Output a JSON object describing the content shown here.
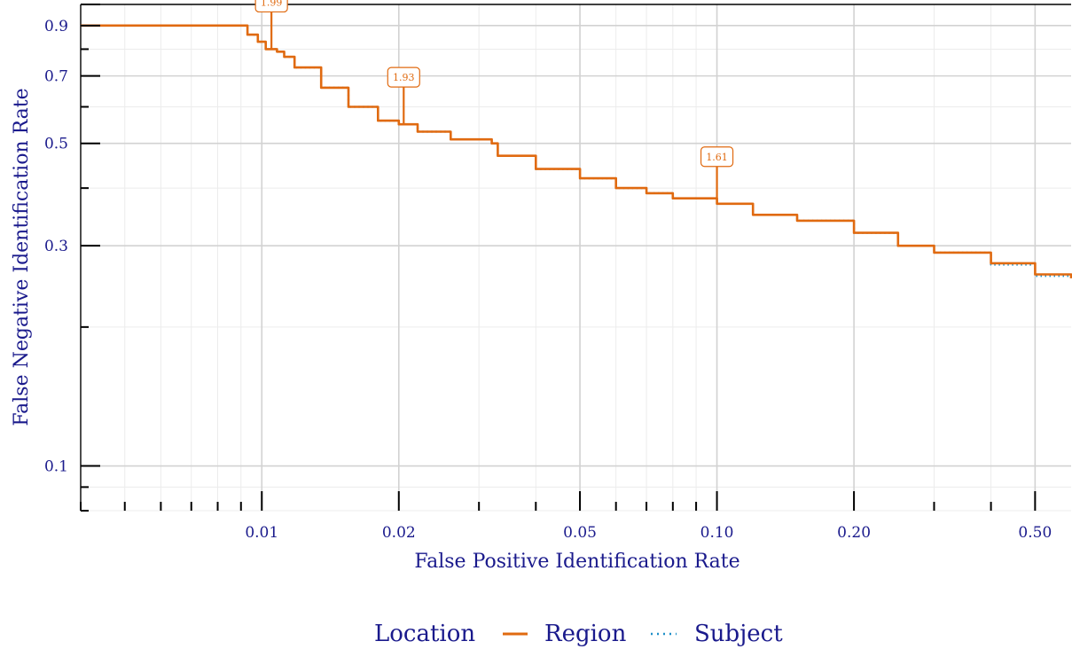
{
  "chart_data": {
    "type": "line",
    "title": "",
    "xlabel": "False Positive Identification Rate",
    "ylabel": "False Negative Identification Rate",
    "x_scale": "log",
    "y_scale": "log",
    "xlim": [
      0.004,
      0.6
    ],
    "ylim": [
      0.08,
      1.0
    ],
    "grid": true,
    "x_ticks": [
      {
        "value": 0.01,
        "label": "0.01"
      },
      {
        "value": 0.02,
        "label": "0.02"
      },
      {
        "value": 0.05,
        "label": "0.05"
      },
      {
        "value": 0.1,
        "label": "0.10"
      },
      {
        "value": 0.2,
        "label": "0.20"
      },
      {
        "value": 0.5,
        "label": "0.50"
      }
    ],
    "y_ticks": [
      {
        "value": 0.1,
        "label": "0.1"
      },
      {
        "value": 0.3,
        "label": "0.3"
      },
      {
        "value": 0.5,
        "label": "0.5"
      },
      {
        "value": 0.7,
        "label": "0.7"
      },
      {
        "value": 0.9,
        "label": "0.9"
      }
    ],
    "legend": {
      "title": "Location",
      "position": "bottom",
      "entries": [
        {
          "name": "Region",
          "style": "solid",
          "color": "#e06a10"
        },
        {
          "name": "Subject",
          "style": "dotted",
          "color": "#1f8fc8"
        }
      ]
    },
    "series": [
      {
        "name": "Region",
        "color": "#e06a10",
        "x": [
          0.004,
          0.009,
          0.0093,
          0.0098,
          0.0102,
          0.0108,
          0.0112,
          0.0118,
          0.0135,
          0.0155,
          0.018,
          0.02,
          0.022,
          0.026,
          0.032,
          0.033,
          0.04,
          0.05,
          0.06,
          0.07,
          0.08,
          0.1,
          0.12,
          0.15,
          0.2,
          0.25,
          0.3,
          0.4,
          0.5,
          0.6
        ],
        "y": [
          0.9,
          0.9,
          0.86,
          0.83,
          0.8,
          0.79,
          0.77,
          0.73,
          0.66,
          0.6,
          0.56,
          0.55,
          0.53,
          0.51,
          0.5,
          0.47,
          0.44,
          0.42,
          0.4,
          0.39,
          0.38,
          0.37,
          0.35,
          0.34,
          0.32,
          0.3,
          0.29,
          0.275,
          0.26,
          0.255
        ]
      },
      {
        "name": "Subject",
        "color": "#1f8fc8",
        "x": [
          0.004,
          0.009,
          0.0093,
          0.0098,
          0.0102,
          0.0108,
          0.0112,
          0.0118,
          0.0135,
          0.0155,
          0.018,
          0.02,
          0.022,
          0.026,
          0.032,
          0.033,
          0.04,
          0.05,
          0.06,
          0.07,
          0.08,
          0.1,
          0.12,
          0.15,
          0.2,
          0.25,
          0.3,
          0.4,
          0.5,
          0.6
        ],
        "y": [
          0.9,
          0.9,
          0.86,
          0.83,
          0.8,
          0.79,
          0.77,
          0.73,
          0.66,
          0.6,
          0.56,
          0.55,
          0.53,
          0.51,
          0.5,
          0.47,
          0.44,
          0.42,
          0.4,
          0.39,
          0.38,
          0.37,
          0.35,
          0.34,
          0.32,
          0.3,
          0.29,
          0.273,
          0.258,
          0.252
        ]
      }
    ],
    "annotations": [
      {
        "x": 0.0105,
        "y": 0.8,
        "label": "1.99"
      },
      {
        "x": 0.0205,
        "y": 0.55,
        "label": "1.93"
      },
      {
        "x": 0.1,
        "y": 0.37,
        "label": "1.61"
      }
    ]
  }
}
